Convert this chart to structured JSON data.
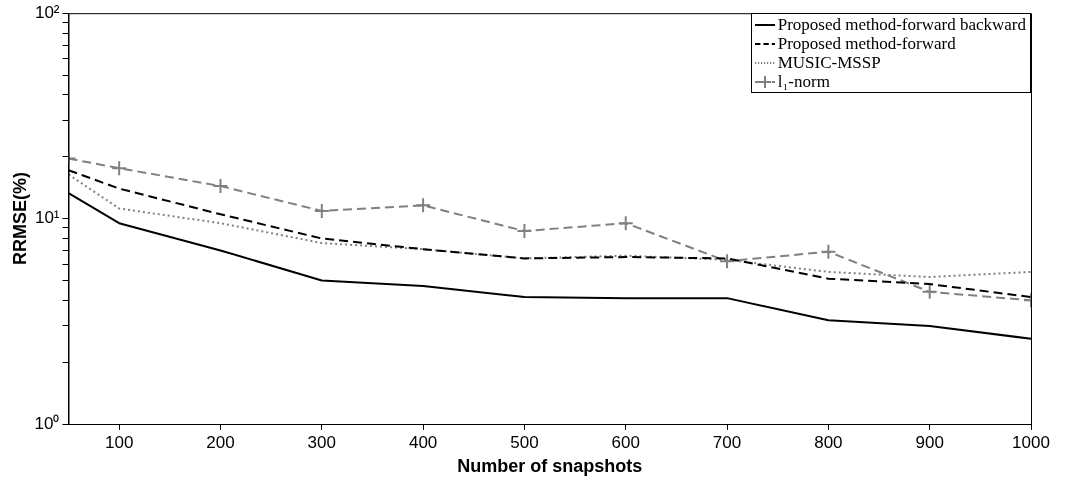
{
  "chart_data": {
    "type": "line",
    "xlabel": "Number of snapshots",
    "ylabel": "RRMSE(%)",
    "x": [
      50,
      100,
      200,
      300,
      400,
      500,
      600,
      700,
      800,
      900,
      1000
    ],
    "xlim": [
      50,
      1000
    ],
    "xticks": [
      100,
      200,
      300,
      400,
      500,
      600,
      700,
      800,
      900,
      1000
    ],
    "log": "y",
    "ylim": [
      1,
      100
    ],
    "yticks": [
      {
        "value": 1,
        "label": "10⁰"
      },
      {
        "value": 2,
        "label": null
      },
      {
        "value": 3,
        "label": null
      },
      {
        "value": 4,
        "label": null
      },
      {
        "value": 5,
        "label": null
      },
      {
        "value": 6,
        "label": null
      },
      {
        "value": 7,
        "label": null
      },
      {
        "value": 8,
        "label": null
      },
      {
        "value": 9,
        "label": null
      },
      {
        "value": 10,
        "label": "10¹"
      },
      {
        "value": 20,
        "label": null
      },
      {
        "value": 30,
        "label": null
      },
      {
        "value": 40,
        "label": null
      },
      {
        "value": 50,
        "label": null
      },
      {
        "value": 60,
        "label": null
      },
      {
        "value": 70,
        "label": null
      },
      {
        "value": 80,
        "label": null
      },
      {
        "value": 90,
        "label": null
      },
      {
        "value": 100,
        "label": "10²"
      }
    ],
    "grid": false,
    "legend": "top right",
    "series": [
      {
        "name": "Proposed method-forward backward",
        "color": "#000000",
        "line_style": "solid",
        "marker": "none",
        "values": [
          13.3,
          9.5,
          7.0,
          5.0,
          4.7,
          4.15,
          4.1,
          4.1,
          3.2,
          3.0,
          2.6
        ]
      },
      {
        "name": "Proposed method-forward",
        "color": "#000000",
        "line_style": "dashed",
        "marker": "none",
        "values": [
          17.2,
          14.0,
          10.5,
          8.0,
          7.1,
          6.4,
          6.5,
          6.4,
          5.1,
          4.8,
          4.15
        ]
      },
      {
        "name": "MUSIC-MSSP",
        "color": "#808080",
        "line_style": "dotted",
        "marker": "none",
        "values": [
          16.4,
          11.2,
          9.5,
          7.6,
          7.1,
          6.4,
          6.6,
          6.3,
          5.5,
          5.2,
          5.5
        ]
      },
      {
        "name": "l₁-norm",
        "color": "#808080",
        "line_style": "dashed",
        "marker": "cross",
        "values": [
          19.6,
          17.6,
          14.4,
          10.9,
          11.6,
          8.7,
          9.5,
          6.2,
          6.9,
          4.4,
          4.0
        ]
      }
    ]
  }
}
